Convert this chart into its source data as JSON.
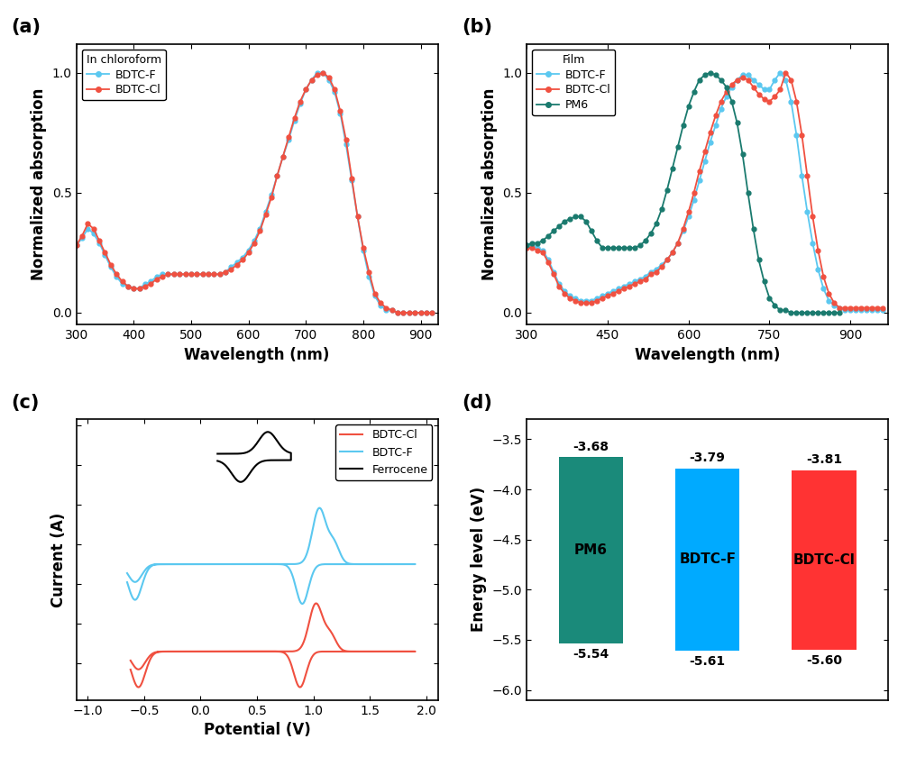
{
  "panel_a": {
    "title": "In chloroform",
    "xlabel": "Wavelength (nm)",
    "ylabel": "Normalized absorption",
    "xlim": [
      300,
      930
    ],
    "ylim": [
      -0.05,
      1.12
    ],
    "xticks": [
      300,
      400,
      500,
      600,
      700,
      800,
      900
    ],
    "yticks": [
      0.0,
      0.5,
      1.0
    ],
    "BDTC_F": {
      "color": "#5BC8F0",
      "x": [
        300,
        310,
        320,
        330,
        340,
        350,
        360,
        370,
        380,
        390,
        400,
        410,
        420,
        430,
        440,
        450,
        460,
        470,
        480,
        490,
        500,
        510,
        520,
        530,
        540,
        550,
        560,
        570,
        580,
        590,
        600,
        610,
        620,
        630,
        640,
        650,
        660,
        670,
        680,
        690,
        700,
        710,
        720,
        730,
        740,
        750,
        760,
        770,
        780,
        790,
        800,
        810,
        820,
        830,
        840,
        850,
        860,
        870,
        880,
        890,
        900,
        910,
        920
      ],
      "y": [
        0.28,
        0.31,
        0.35,
        0.33,
        0.29,
        0.24,
        0.19,
        0.15,
        0.12,
        0.11,
        0.1,
        0.1,
        0.12,
        0.13,
        0.15,
        0.16,
        0.16,
        0.16,
        0.16,
        0.16,
        0.16,
        0.16,
        0.16,
        0.16,
        0.16,
        0.16,
        0.17,
        0.19,
        0.21,
        0.23,
        0.26,
        0.3,
        0.35,
        0.42,
        0.49,
        0.57,
        0.65,
        0.72,
        0.8,
        0.87,
        0.93,
        0.97,
        1.0,
        1.0,
        0.97,
        0.92,
        0.83,
        0.7,
        0.55,
        0.4,
        0.26,
        0.15,
        0.07,
        0.03,
        0.01,
        0.01,
        0.0,
        0.0,
        0.0,
        0.0,
        0.0,
        0.0,
        0.0
      ]
    },
    "BDTC_Cl": {
      "color": "#F05040",
      "x": [
        300,
        310,
        320,
        330,
        340,
        350,
        360,
        370,
        380,
        390,
        400,
        410,
        420,
        430,
        440,
        450,
        460,
        470,
        480,
        490,
        500,
        510,
        520,
        530,
        540,
        550,
        560,
        570,
        580,
        590,
        600,
        610,
        620,
        630,
        640,
        650,
        660,
        670,
        680,
        690,
        700,
        710,
        720,
        730,
        740,
        750,
        760,
        770,
        780,
        790,
        800,
        810,
        820,
        830,
        840,
        850,
        860,
        870,
        880,
        890,
        900,
        910,
        920
      ],
      "y": [
        0.28,
        0.32,
        0.37,
        0.35,
        0.3,
        0.25,
        0.2,
        0.16,
        0.13,
        0.11,
        0.1,
        0.1,
        0.11,
        0.12,
        0.14,
        0.15,
        0.16,
        0.16,
        0.16,
        0.16,
        0.16,
        0.16,
        0.16,
        0.16,
        0.16,
        0.16,
        0.17,
        0.18,
        0.2,
        0.22,
        0.25,
        0.29,
        0.34,
        0.41,
        0.48,
        0.57,
        0.65,
        0.73,
        0.81,
        0.88,
        0.93,
        0.97,
        0.99,
        1.0,
        0.98,
        0.93,
        0.84,
        0.72,
        0.56,
        0.4,
        0.27,
        0.17,
        0.08,
        0.04,
        0.02,
        0.01,
        0.0,
        0.0,
        0.0,
        0.0,
        0.0,
        0.0,
        0.0
      ]
    }
  },
  "panel_b": {
    "title": "Film",
    "xlabel": "Wavelength (nm)",
    "ylabel": "Normalized absorption",
    "xlim": [
      300,
      970
    ],
    "ylim": [
      -0.05,
      1.12
    ],
    "xticks": [
      300,
      450,
      600,
      750,
      900
    ],
    "yticks": [
      0.0,
      0.5,
      1.0
    ],
    "BDTC_F": {
      "color": "#5BC8F0",
      "x": [
        300,
        310,
        320,
        330,
        340,
        350,
        360,
        370,
        380,
        390,
        400,
        410,
        420,
        430,
        440,
        450,
        460,
        470,
        480,
        490,
        500,
        510,
        520,
        530,
        540,
        550,
        560,
        570,
        580,
        590,
        600,
        610,
        620,
        630,
        640,
        650,
        660,
        670,
        680,
        690,
        700,
        710,
        720,
        730,
        740,
        750,
        760,
        770,
        780,
        790,
        800,
        810,
        820,
        830,
        840,
        850,
        860,
        870,
        880,
        890,
        900,
        910,
        920,
        930,
        940,
        950,
        960
      ],
      "y": [
        0.28,
        0.28,
        0.27,
        0.26,
        0.22,
        0.17,
        0.12,
        0.09,
        0.07,
        0.06,
        0.05,
        0.05,
        0.05,
        0.06,
        0.07,
        0.08,
        0.09,
        0.1,
        0.11,
        0.12,
        0.13,
        0.14,
        0.15,
        0.17,
        0.18,
        0.2,
        0.22,
        0.25,
        0.29,
        0.34,
        0.4,
        0.47,
        0.55,
        0.63,
        0.71,
        0.78,
        0.85,
        0.9,
        0.94,
        0.97,
        0.99,
        0.99,
        0.97,
        0.95,
        0.93,
        0.93,
        0.97,
        1.0,
        0.97,
        0.88,
        0.74,
        0.57,
        0.42,
        0.29,
        0.18,
        0.1,
        0.05,
        0.03,
        0.02,
        0.01,
        0.01,
        0.01,
        0.01,
        0.01,
        0.01,
        0.01,
        0.01
      ]
    },
    "BDTC_Cl": {
      "color": "#F05040",
      "x": [
        300,
        310,
        320,
        330,
        340,
        350,
        360,
        370,
        380,
        390,
        400,
        410,
        420,
        430,
        440,
        450,
        460,
        470,
        480,
        490,
        500,
        510,
        520,
        530,
        540,
        550,
        560,
        570,
        580,
        590,
        600,
        610,
        620,
        630,
        640,
        650,
        660,
        670,
        680,
        690,
        700,
        710,
        720,
        730,
        740,
        750,
        760,
        770,
        780,
        790,
        800,
        810,
        820,
        830,
        840,
        850,
        860,
        870,
        880,
        890,
        900,
        910,
        920,
        930,
        940,
        950,
        960
      ],
      "y": [
        0.27,
        0.27,
        0.26,
        0.25,
        0.21,
        0.16,
        0.11,
        0.08,
        0.06,
        0.05,
        0.04,
        0.04,
        0.04,
        0.05,
        0.06,
        0.07,
        0.08,
        0.09,
        0.1,
        0.11,
        0.12,
        0.13,
        0.14,
        0.16,
        0.17,
        0.19,
        0.22,
        0.25,
        0.29,
        0.35,
        0.42,
        0.5,
        0.59,
        0.67,
        0.75,
        0.82,
        0.88,
        0.92,
        0.95,
        0.97,
        0.98,
        0.97,
        0.94,
        0.91,
        0.89,
        0.88,
        0.9,
        0.93,
        1.0,
        0.97,
        0.88,
        0.74,
        0.57,
        0.4,
        0.26,
        0.15,
        0.08,
        0.04,
        0.02,
        0.02,
        0.02,
        0.02,
        0.02,
        0.02,
        0.02,
        0.02,
        0.02
      ]
    },
    "PM6": {
      "color": "#1A7A6E",
      "x": [
        300,
        310,
        320,
        330,
        340,
        350,
        360,
        370,
        380,
        390,
        400,
        410,
        420,
        430,
        440,
        450,
        460,
        470,
        480,
        490,
        500,
        510,
        520,
        530,
        540,
        550,
        560,
        570,
        580,
        590,
        600,
        610,
        620,
        630,
        640,
        650,
        660,
        670,
        680,
        690,
        700,
        710,
        720,
        730,
        740,
        750,
        760,
        770,
        780,
        790,
        800,
        810,
        820,
        830,
        840,
        850,
        860,
        870,
        880
      ],
      "y": [
        0.28,
        0.29,
        0.29,
        0.3,
        0.32,
        0.34,
        0.36,
        0.38,
        0.39,
        0.4,
        0.4,
        0.38,
        0.34,
        0.3,
        0.27,
        0.27,
        0.27,
        0.27,
        0.27,
        0.27,
        0.27,
        0.28,
        0.3,
        0.33,
        0.37,
        0.43,
        0.51,
        0.6,
        0.69,
        0.78,
        0.86,
        0.92,
        0.97,
        0.99,
        1.0,
        0.99,
        0.97,
        0.94,
        0.88,
        0.79,
        0.66,
        0.5,
        0.35,
        0.22,
        0.13,
        0.06,
        0.03,
        0.01,
        0.01,
        0.0,
        0.0,
        0.0,
        0.0,
        0.0,
        0.0,
        0.0,
        0.0,
        0.0,
        0.0
      ]
    }
  },
  "panel_c": {
    "xlabel": "Potential (V)",
    "ylabel": "Current (A)",
    "xlim": [
      -1.1,
      2.1
    ],
    "ylim_auto": true,
    "xticks": [
      -1.0,
      -0.5,
      0.0,
      0.5,
      1.0,
      1.5,
      2.0
    ],
    "ferrocene_color": "#000000",
    "BDTC_F_color": "#5BC8F0",
    "BDTC_Cl_color": "#F05040"
  },
  "panel_d": {
    "ylabel": "Energy level (eV)",
    "ylim": [
      -6.1,
      -3.3
    ],
    "yticks": [
      -6.0,
      -5.5,
      -5.0,
      -4.5,
      -4.0,
      -3.5
    ],
    "bars": [
      {
        "label": "PM6",
        "homo": -5.54,
        "lumo": -3.68,
        "color": "#1A8A7A",
        "text_color": "#000000"
      },
      {
        "label": "BDTC-F",
        "homo": -5.61,
        "lumo": -3.79,
        "color": "#00AAFF",
        "text_color": "#000000"
      },
      {
        "label": "BDTC-Cl",
        "homo": -5.6,
        "lumo": -3.81,
        "color": "#FF3333",
        "text_color": "#000000"
      }
    ]
  }
}
